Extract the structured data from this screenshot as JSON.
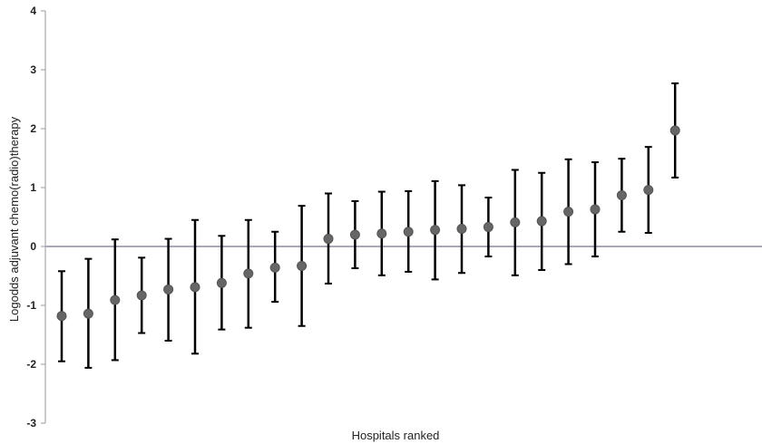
{
  "chart_data": {
    "type": "scatter",
    "title": "",
    "xlabel": "Hospitals ranked",
    "ylabel": "Logodds adjuvant chemo(radio)therapy",
    "ylim": [
      -3,
      4
    ],
    "yticks": [
      "-3",
      "-2",
      "-1",
      "0",
      "1",
      "2",
      "3",
      "4"
    ],
    "grid": false,
    "reference_line_y": 0,
    "colors": {
      "point": "#666666",
      "error_bar": "#000000",
      "reference_line": "#a9a9b5",
      "axis": "#999999"
    },
    "points": [
      {
        "rank": 1,
        "estimate": -1.18,
        "lower": -1.95,
        "upper": -0.42
      },
      {
        "rank": 2,
        "estimate": -1.14,
        "lower": -2.06,
        "upper": -0.21
      },
      {
        "rank": 3,
        "estimate": -0.91,
        "lower": -1.93,
        "upper": 0.12
      },
      {
        "rank": 4,
        "estimate": -0.83,
        "lower": -1.47,
        "upper": -0.19
      },
      {
        "rank": 5,
        "estimate": -0.73,
        "lower": -1.6,
        "upper": 0.13
      },
      {
        "rank": 6,
        "estimate": -0.69,
        "lower": -1.82,
        "upper": 0.45
      },
      {
        "rank": 7,
        "estimate": -0.62,
        "lower": -1.41,
        "upper": 0.18
      },
      {
        "rank": 8,
        "estimate": -0.46,
        "lower": -1.38,
        "upper": 0.45
      },
      {
        "rank": 9,
        "estimate": -0.36,
        "lower": -0.94,
        "upper": 0.25
      },
      {
        "rank": 10,
        "estimate": -0.33,
        "lower": -1.35,
        "upper": 0.69
      },
      {
        "rank": 11,
        "estimate": 0.13,
        "lower": -0.63,
        "upper": 0.9
      },
      {
        "rank": 12,
        "estimate": 0.2,
        "lower": -0.37,
        "upper": 0.77
      },
      {
        "rank": 13,
        "estimate": 0.22,
        "lower": -0.49,
        "upper": 0.93
      },
      {
        "rank": 14,
        "estimate": 0.25,
        "lower": -0.43,
        "upper": 0.94
      },
      {
        "rank": 15,
        "estimate": 0.28,
        "lower": -0.56,
        "upper": 1.11
      },
      {
        "rank": 16,
        "estimate": 0.3,
        "lower": -0.45,
        "upper": 1.04
      },
      {
        "rank": 17,
        "estimate": 0.33,
        "lower": -0.17,
        "upper": 0.83
      },
      {
        "rank": 18,
        "estimate": 0.41,
        "lower": -0.49,
        "upper": 1.3
      },
      {
        "rank": 19,
        "estimate": 0.43,
        "lower": -0.4,
        "upper": 1.25
      },
      {
        "rank": 20,
        "estimate": 0.59,
        "lower": -0.3,
        "upper": 1.48
      },
      {
        "rank": 21,
        "estimate": 0.63,
        "lower": -0.17,
        "upper": 1.43
      },
      {
        "rank": 22,
        "estimate": 0.87,
        "lower": 0.25,
        "upper": 1.49
      },
      {
        "rank": 23,
        "estimate": 0.96,
        "lower": 0.23,
        "upper": 1.69
      },
      {
        "rank": 24,
        "estimate": 1.97,
        "lower": 1.17,
        "upper": 2.77
      }
    ]
  }
}
